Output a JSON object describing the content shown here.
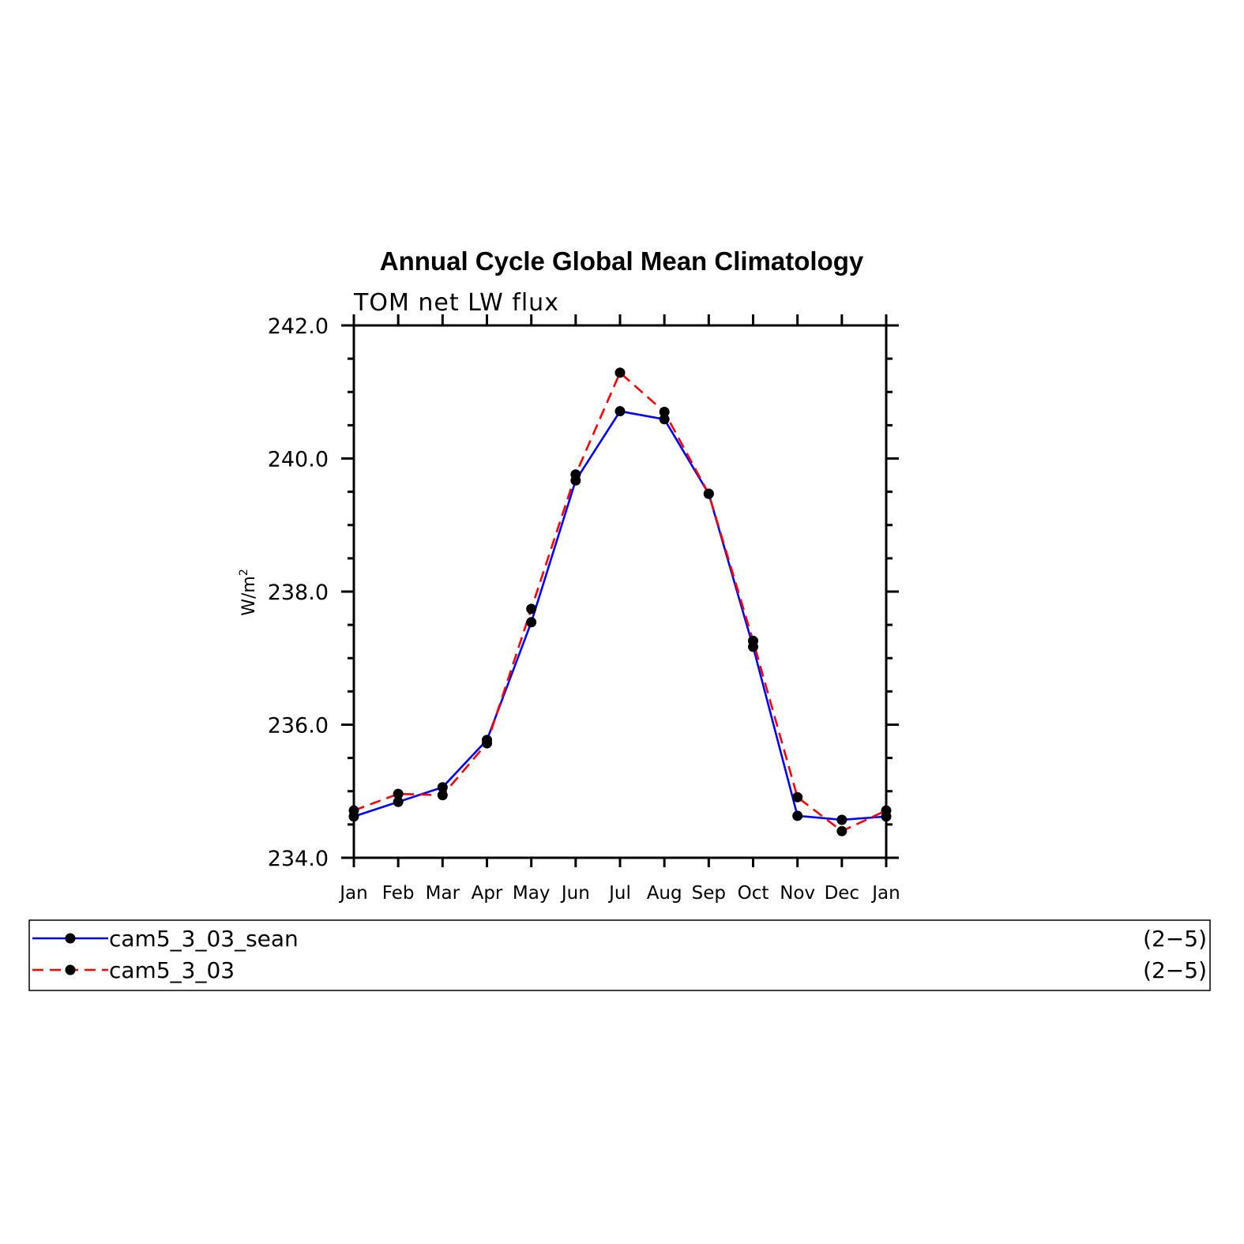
{
  "chart_data": {
    "type": "line",
    "title": "Annual Cycle Global Mean Climatology",
    "subtitle": "TOM net LW flux",
    "ylabel": "W/m",
    "ylabel_sup": "2",
    "xlabel": "",
    "categories": [
      "Jan",
      "Feb",
      "Mar",
      "Apr",
      "May",
      "Jun",
      "Jul",
      "Aug",
      "Sep",
      "Oct",
      "Nov",
      "Dec",
      "Jan"
    ],
    "ylim": [
      234.0,
      242.0
    ],
    "yticks": [
      234.0,
      236.0,
      238.0,
      240.0,
      242.0
    ],
    "ytick_labels": [
      "234.0",
      "236.0",
      "238.0",
      "240.0",
      "242.0"
    ],
    "grid": false,
    "legend_position": "bottom",
    "series": [
      {
        "name": "cam5_3_03_sean",
        "range_label": "(2−5)",
        "color": "#0000ff",
        "dash": "solid",
        "values": [
          234.62,
          234.84,
          235.06,
          235.77,
          237.54,
          239.67,
          240.71,
          240.59,
          239.47,
          237.17,
          234.63,
          234.57,
          234.62
        ]
      },
      {
        "name": "cam5_3_03",
        "range_label": "(2−5)",
        "color": "#ff0000",
        "dash": "dashed",
        "values": [
          234.71,
          234.96,
          234.94,
          235.72,
          237.74,
          239.76,
          241.29,
          240.7,
          239.47,
          237.26,
          234.91,
          234.4,
          234.71
        ]
      }
    ]
  }
}
